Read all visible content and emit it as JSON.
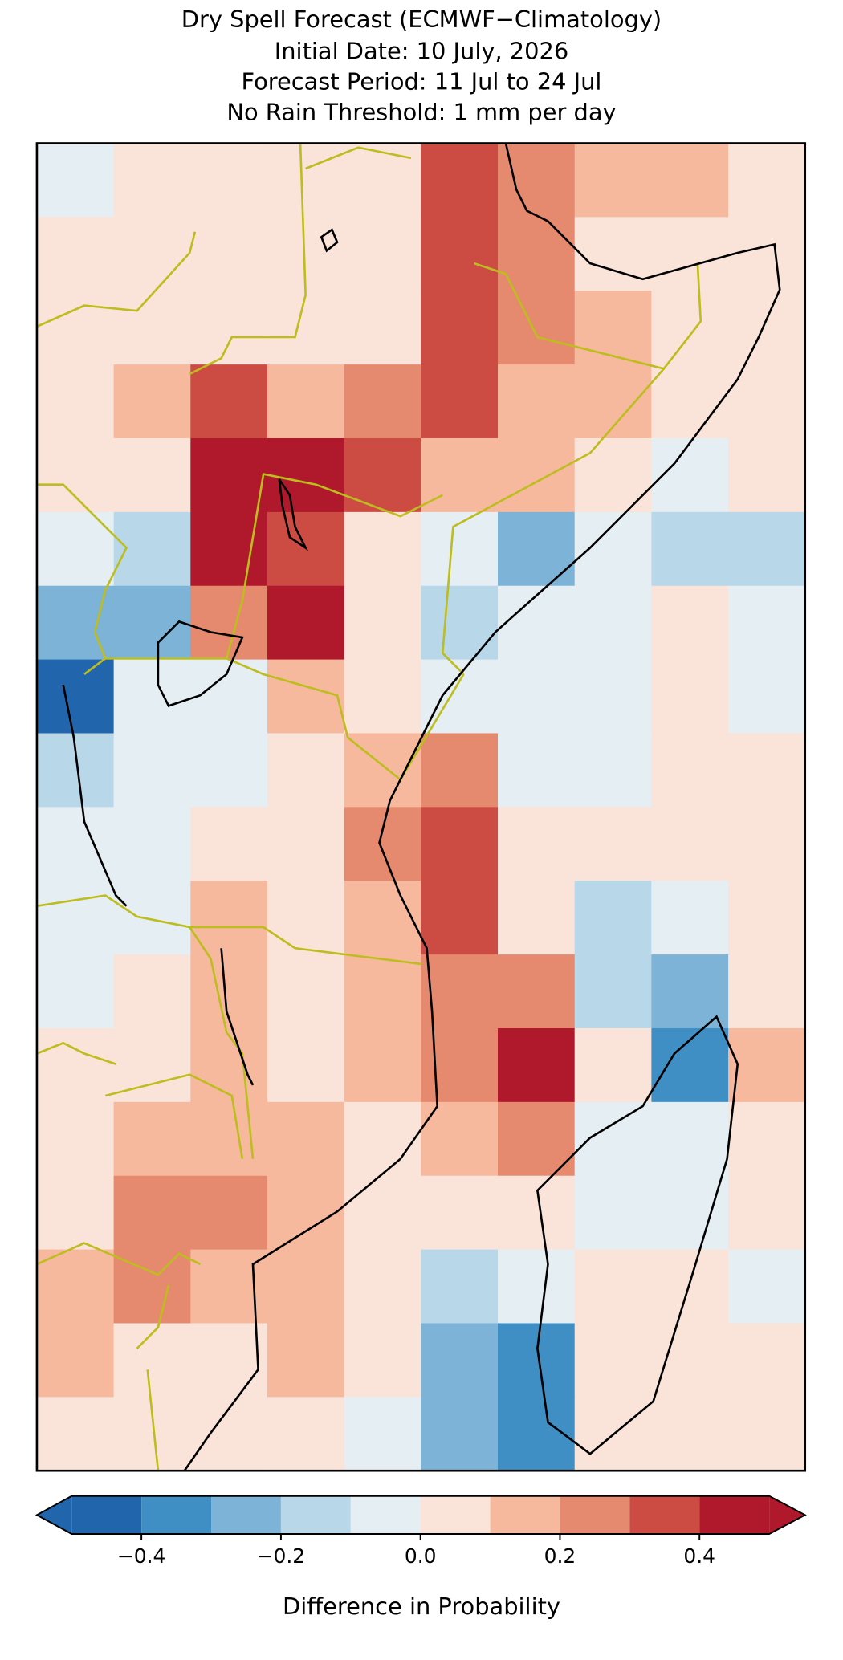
{
  "chart_data": {
    "type": "heatmap",
    "title": "Dry Spell Forecast (ECMWF−Climatology)",
    "subtitles": [
      "Initial Date: 10 July, 2026",
      "Forecast Period: 11 Jul to 24 Jul",
      "No Rain Threshold: 1 mm per day"
    ],
    "grid": [
      [
        -0.05,
        0.05,
        0.05,
        0.05,
        0.05,
        0.35,
        0.25,
        0.15,
        0.15,
        0.05
      ],
      [
        0.05,
        0.05,
        0.05,
        0.05,
        0.05,
        0.35,
        0.25,
        0.05,
        0.05,
        0.05
      ],
      [
        0.05,
        0.05,
        0.05,
        0.05,
        0.05,
        0.35,
        0.25,
        0.15,
        0.05,
        0.05
      ],
      [
        0.05,
        0.15,
        0.35,
        0.15,
        0.25,
        0.35,
        0.15,
        0.15,
        0.05,
        0.05
      ],
      [
        0.05,
        0.05,
        0.45,
        0.45,
        0.35,
        0.15,
        0.15,
        0.05,
        -0.05,
        0.05
      ],
      [
        -0.05,
        -0.15,
        0.45,
        0.35,
        0.05,
        -0.05,
        -0.25,
        -0.05,
        -0.15,
        -0.15
      ],
      [
        -0.25,
        -0.25,
        0.25,
        0.45,
        0.05,
        -0.15,
        -0.05,
        -0.05,
        0.05,
        -0.05
      ],
      [
        -0.45,
        -0.05,
        -0.05,
        0.15,
        0.05,
        -0.05,
        -0.05,
        -0.05,
        0.05,
        -0.05
      ],
      [
        -0.15,
        -0.05,
        -0.05,
        0.05,
        0.15,
        0.25,
        -0.05,
        -0.05,
        0.05,
        0.05
      ],
      [
        -0.05,
        -0.05,
        0.05,
        0.05,
        0.25,
        0.35,
        0.05,
        0.05,
        0.05,
        0.05
      ],
      [
        -0.05,
        -0.05,
        0.15,
        0.05,
        0.15,
        0.35,
        0.05,
        -0.15,
        -0.05,
        0.05
      ],
      [
        -0.05,
        0.05,
        0.15,
        0.05,
        0.15,
        0.25,
        0.25,
        -0.15,
        -0.25,
        0.05
      ],
      [
        0.05,
        0.05,
        0.15,
        0.05,
        0.15,
        0.25,
        0.45,
        0.05,
        -0.35,
        0.15
      ],
      [
        0.05,
        0.15,
        0.15,
        0.15,
        0.05,
        0.15,
        0.25,
        -0.05,
        -0.05,
        0.05
      ],
      [
        0.05,
        0.25,
        0.25,
        0.15,
        0.05,
        0.05,
        0.05,
        -0.05,
        -0.05,
        0.05
      ],
      [
        0.15,
        0.25,
        0.15,
        0.15,
        0.05,
        -0.15,
        -0.05,
        0.05,
        0.05,
        -0.05
      ],
      [
        0.15,
        0.05,
        0.05,
        0.15,
        0.05,
        -0.25,
        -0.35,
        0.05,
        0.05,
        0.05
      ],
      [
        0.05,
        0.05,
        0.05,
        0.05,
        -0.05,
        -0.25,
        -0.35,
        0.05,
        0.05,
        0.05
      ]
    ],
    "levels": [
      -0.5,
      -0.4,
      -0.3,
      -0.2,
      -0.1,
      0,
      0.1,
      0.2,
      0.3,
      0.4,
      0.5
    ],
    "colors": [
      "#2166ac",
      "#3f8ec4",
      "#7cb3d6",
      "#b8d8ea",
      "#e5eef3",
      "#fae3d8",
      "#f6b99e",
      "#e58a6e",
      "#cc4c44",
      "#b0182b"
    ],
    "colorbar_ticks": [
      {
        "value": -0.4,
        "label": "−0.4"
      },
      {
        "value": -0.2,
        "label": "−0.2"
      },
      {
        "value": 0,
        "label": "0.0"
      },
      {
        "value": 0.2,
        "label": "0.2"
      },
      {
        "value": 0.4,
        "label": "0.4"
      }
    ],
    "colorbar_label": "Difference in Probability"
  }
}
